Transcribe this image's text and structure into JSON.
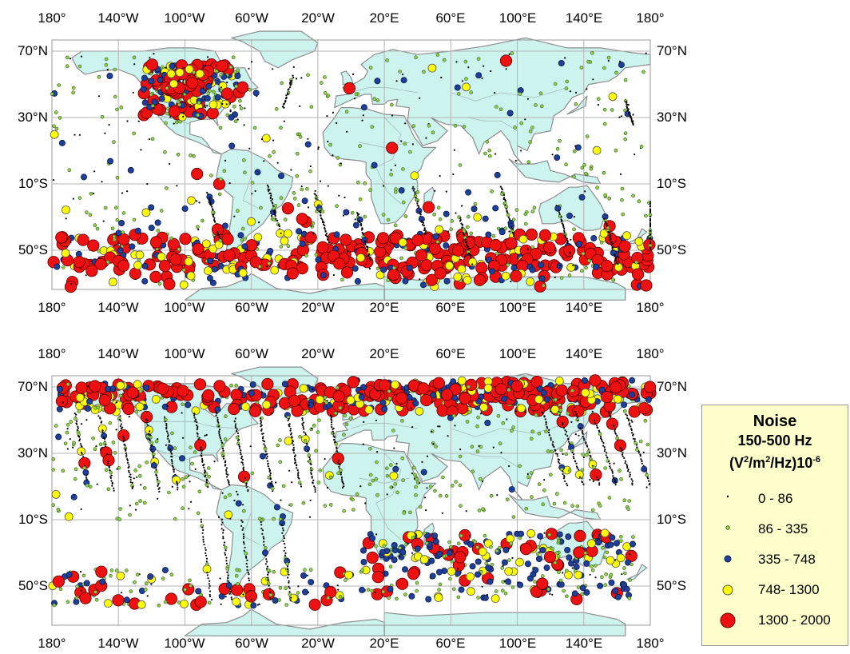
{
  "maps": [
    {
      "top_lon_labels": [
        "180°",
        "140°W",
        "100°W",
        "60°W",
        "20°W",
        "20°E",
        "60°E",
        "100°E",
        "140°E",
        "180°"
      ],
      "bottom_lon_labels": [
        "180°",
        "140°W",
        "100°W",
        "60°W",
        "20°W",
        "20°E",
        "60°E",
        "100°E",
        "140°E",
        "180°"
      ],
      "left_lat_labels": [
        "70°N",
        "30°N",
        "10°S",
        "50°S"
      ],
      "right_lat_labels": [
        "70°N",
        "30°N",
        "10°S",
        "50°S"
      ]
    },
    {
      "top_lon_labels": [
        "180°",
        "140°W",
        "100°W",
        "60°W",
        "20°W",
        "20°E",
        "60°E",
        "100°E",
        "140°E",
        "180°"
      ],
      "bottom_lon_labels": [
        "180°",
        "140°W",
        "100°W",
        "60°W",
        "20°W",
        "20°E",
        "60°E",
        "100°E",
        "140°E",
        "180°"
      ],
      "left_lat_labels": [
        "70°N",
        "30°N",
        "10°S",
        "50°S"
      ],
      "right_lat_labels": [
        "70°N",
        "30°N",
        "10°S",
        "50°S"
      ]
    }
  ],
  "legend": {
    "title": "Noise",
    "subtitle": "150-500 Hz",
    "unit_main": "(V",
    "unit_sup1": "2",
    "unit_mid": "/m",
    "unit_sup2": "2",
    "unit_end": "/Hz)10",
    "unit_sup3": "-6",
    "classes": [
      {
        "label": "0 - 86",
        "color": "#000000"
      },
      {
        "label": "86 - 335",
        "color": "#8fd14f"
      },
      {
        "label": "335 - 748",
        "color": "#1f3f9a"
      },
      {
        "label": "748- 1300",
        "color": "#ffff00"
      },
      {
        "label": "1300 - 2000",
        "color": "#ee1111"
      }
    ]
  },
  "colors": {
    "land": "#cdf3ef",
    "coast": "#8c8c8c",
    "grid": "#b4b4b4"
  }
}
